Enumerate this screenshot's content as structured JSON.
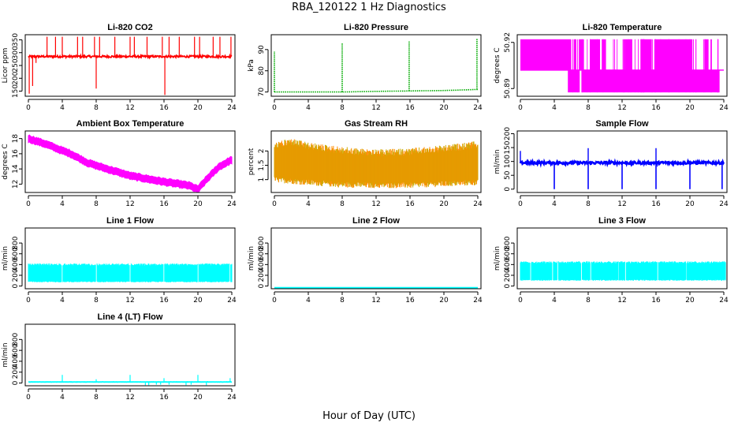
{
  "figure": {
    "title": "RBA_120122  1 Hz Diagnostics",
    "xlabel": "Hour of Day (UTC)"
  },
  "chart_data": [
    {
      "type": "line",
      "title": "Li-820 CO2",
      "ylabel": "Licor ppm",
      "color": "#ff0000",
      "xlim": [
        0,
        24
      ],
      "xticks": [
        0,
        4,
        8,
        12,
        16,
        20,
        24
      ],
      "ylim": [
        130,
        370
      ],
      "yticks": [
        150,
        200,
        250,
        300,
        350
      ],
      "series": [
        {
          "baseline": 285,
          "noise": 4,
          "spikes": [
            {
              "x": 0.1,
              "y": 140
            },
            {
              "x": 0.5,
              "y": 170
            },
            {
              "x": 0.9,
              "y": 260
            },
            {
              "x": 2.2,
              "y": 362
            },
            {
              "x": 3.2,
              "y": 362
            },
            {
              "x": 4.0,
              "y": 362
            },
            {
              "x": 5.8,
              "y": 362
            },
            {
              "x": 6.4,
              "y": 362
            },
            {
              "x": 7.8,
              "y": 362
            },
            {
              "x": 8.0,
              "y": 160
            },
            {
              "x": 8.4,
              "y": 362
            },
            {
              "x": 10.2,
              "y": 362
            },
            {
              "x": 12.0,
              "y": 362
            },
            {
              "x": 12.5,
              "y": 362
            },
            {
              "x": 14.0,
              "y": 362
            },
            {
              "x": 15.8,
              "y": 362
            },
            {
              "x": 16.1,
              "y": 135
            },
            {
              "x": 16.6,
              "y": 362
            },
            {
              "x": 17.8,
              "y": 362
            },
            {
              "x": 19.6,
              "y": 362
            },
            {
              "x": 20.2,
              "y": 362
            },
            {
              "x": 21.8,
              "y": 362
            },
            {
              "x": 22.6,
              "y": 362
            },
            {
              "x": 23.9,
              "y": 362
            }
          ]
        }
      ]
    },
    {
      "type": "line",
      "title": "Li-820 Pressure",
      "ylabel": "kPa",
      "color": "#00aa00",
      "line_style": "dotted",
      "xlim": [
        0,
        24
      ],
      "xticks": [
        0,
        4,
        8,
        12,
        16,
        20,
        24
      ],
      "ylim": [
        68,
        97
      ],
      "yticks": [
        70,
        80,
        90
      ],
      "series": [
        {
          "baseline_points": [
            [
              0,
              70
            ],
            [
              1,
              70
            ],
            [
              8,
              70
            ],
            [
              12,
              70.3
            ],
            [
              16,
              70.5
            ],
            [
              20,
              70.7
            ],
            [
              24,
              71.2
            ]
          ],
          "spikes": [
            {
              "x": 0.0,
              "y": 89
            },
            {
              "x": 8.0,
              "y": 93
            },
            {
              "x": 15.9,
              "y": 94
            },
            {
              "x": 23.9,
              "y": 95
            }
          ]
        }
      ]
    },
    {
      "type": "band",
      "title": "Li-820 Temperature",
      "ylabel": "degrees C",
      "color": "#ff00ff",
      "xlim": [
        0,
        24
      ],
      "xticks": [
        0,
        4,
        8,
        12,
        16,
        20,
        24
      ],
      "ylim": [
        50.885,
        50.925
      ],
      "yticks": [
        50.89,
        50.92
      ],
      "series": [
        {
          "levels": [
            50.921,
            50.902,
            50.8875
          ],
          "upper_segments": [
            [
              0,
              6.0
            ],
            [
              6.3,
              6.6
            ],
            [
              6.9,
              7.5
            ],
            [
              8.2,
              9.4
            ],
            [
              9.6,
              10.1
            ],
            [
              12.3,
              13.2
            ],
            [
              14.2,
              15.5
            ],
            [
              15.8,
              20.3
            ],
            [
              21.7,
              22.2
            ]
          ],
          "lower_segments": [
            [
              5.6,
              7.0
            ],
            [
              7.2,
              23.5
            ]
          ]
        }
      ]
    },
    {
      "type": "line",
      "title": "Ambient Box Temperature",
      "ylabel": "degrees C",
      "color": "#ff00ff",
      "xlim": [
        0,
        24
      ],
      "xticks": [
        0,
        4,
        8,
        12,
        16,
        20,
        24
      ],
      "ylim": [
        10.9,
        19.0
      ],
      "yticks": [
        12,
        14,
        16,
        18
      ],
      "series": [
        {
          "points": [
            [
              0,
              18.0
            ],
            [
              2,
              17.3
            ],
            [
              4,
              16.4
            ],
            [
              5,
              16.0
            ],
            [
              7,
              14.8
            ],
            [
              9,
              14.1
            ],
            [
              12,
              13.1
            ],
            [
              16,
              12.3
            ],
            [
              19,
              11.8
            ],
            [
              20,
              11.3
            ],
            [
              21,
              12.6
            ],
            [
              22.5,
              14.3
            ],
            [
              24,
              15.2
            ]
          ],
          "band": 0.45
        }
      ]
    },
    {
      "type": "band",
      "title": "Gas Stream RH",
      "ylabel": "percent",
      "color": "#ff8c00",
      "color2": "#ccaa00",
      "xlim": [
        0,
        24
      ],
      "xticks": [
        0,
        4,
        8,
        12,
        16,
        20,
        24
      ],
      "ylim": [
        0.55,
        2.7
      ],
      "yticks": [
        1.0,
        1.5,
        2.0
      ],
      "series": [
        {
          "center": 1.45,
          "upper_points": [
            [
              0,
              2.3
            ],
            [
              2,
              2.45
            ],
            [
              4,
              2.3
            ],
            [
              8,
              2.15
            ],
            [
              12,
              2.05
            ],
            [
              16,
              2.1
            ],
            [
              20,
              2.2
            ],
            [
              24,
              2.35
            ]
          ],
          "lower_points": [
            [
              0,
              0.9
            ],
            [
              2,
              0.85
            ],
            [
              4,
              0.8
            ],
            [
              8,
              0.72
            ],
            [
              12,
              0.7
            ],
            [
              16,
              0.7
            ],
            [
              20,
              0.75
            ],
            [
              24,
              0.8
            ]
          ]
        }
      ]
    },
    {
      "type": "line",
      "title": "Sample Flow",
      "ylabel": "ml/min",
      "color": "#0000ff",
      "xlim": [
        0,
        24
      ],
      "xticks": [
        0,
        4,
        8,
        12,
        16,
        20,
        24
      ],
      "ylim": [
        -12,
        210
      ],
      "yticks": [
        0,
        50,
        100,
        150,
        200
      ],
      "series": [
        {
          "baseline": 95,
          "noise": 5,
          "dips": [
            4.0,
            8.0,
            12.0,
            16.0,
            20.0,
            23.8
          ],
          "dip_value": 0,
          "peaks": [
            {
              "x": 0.0,
              "y": 138
            },
            {
              "x": 8.0,
              "y": 148
            },
            {
              "x": 16.0,
              "y": 148
            }
          ]
        }
      ]
    },
    {
      "type": "band",
      "title": "Line 1 Flow",
      "ylabel": "ml/min",
      "color": "#00ffff",
      "xlim": [
        0,
        24
      ],
      "xticks": [
        0,
        4,
        8,
        12,
        16,
        20,
        24
      ],
      "ylim": [
        -50,
        1080
      ],
      "yticks": [
        0,
        200,
        400,
        600,
        800
      ],
      "series": [
        {
          "upper": 420,
          "lower": 70,
          "gaps": [
            4.0,
            8.0,
            12.0,
            16.0,
            20.0,
            23.8
          ]
        }
      ]
    },
    {
      "type": "line",
      "title": "Line 2 Flow",
      "ylabel": "ml/min",
      "color": "#00ffff",
      "xlim": [
        0,
        24
      ],
      "xticks": [
        0,
        4,
        8,
        12,
        16,
        20,
        24
      ],
      "ylim": [
        -50,
        1080
      ],
      "yticks": [
        0,
        200,
        400,
        600,
        800
      ],
      "series": [
        {
          "baseline": -30,
          "noise": 0
        }
      ]
    },
    {
      "type": "band",
      "title": "Line 3 Flow",
      "ylabel": "ml/min",
      "color": "#00ffff",
      "xlim": [
        0,
        24
      ],
      "xticks": [
        0,
        4,
        8,
        12,
        16,
        20,
        24
      ],
      "ylim": [
        -50,
        1080
      ],
      "yticks": [
        0,
        200,
        400,
        600,
        800
      ],
      "series": [
        {
          "upper": 460,
          "lower": 100,
          "gaps": [
            1.2,
            3.8,
            4.4,
            7.2,
            8.3,
            11.6,
            12.4,
            16.2,
            19.6
          ],
          "end": 24.2
        }
      ]
    },
    {
      "type": "line",
      "title": "Line 4 (LT) Flow",
      "ylabel": "ml/min",
      "color": "#00ffff",
      "xlim": [
        0,
        24
      ],
      "xticks": [
        0,
        4,
        8,
        12,
        16,
        20,
        24
      ],
      "ylim": [
        -50,
        1080
      ],
      "yticks": [
        0,
        200,
        400,
        600,
        800
      ],
      "series": [
        {
          "baseline": 20,
          "noise": 2,
          "spikes": [
            {
              "x": 4.0,
              "y": 150
            },
            {
              "x": 8.0,
              "y": 70
            },
            {
              "x": 12.0,
              "y": 150
            },
            {
              "x": 13.8,
              "y": -40
            },
            {
              "x": 14.2,
              "y": -40
            },
            {
              "x": 15.1,
              "y": -30
            },
            {
              "x": 15.6,
              "y": -30
            },
            {
              "x": 16.0,
              "y": 90
            },
            {
              "x": 16.6,
              "y": -30
            },
            {
              "x": 18.6,
              "y": -40
            },
            {
              "x": 19.2,
              "y": -30
            },
            {
              "x": 20.0,
              "y": 150
            },
            {
              "x": 21.0,
              "y": -40
            },
            {
              "x": 23.8,
              "y": 90
            }
          ]
        }
      ]
    }
  ]
}
